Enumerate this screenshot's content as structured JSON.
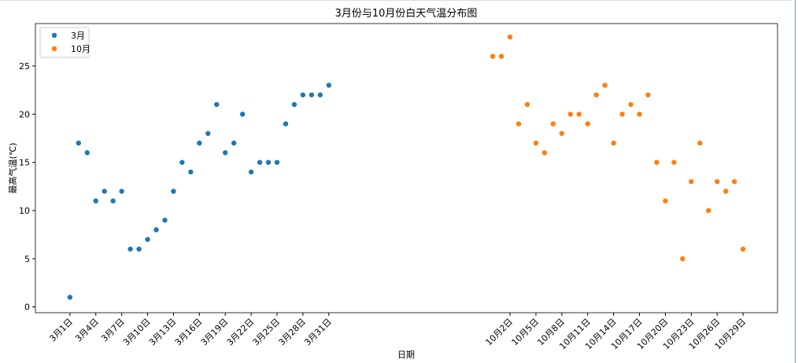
{
  "chart_data": {
    "type": "scatter",
    "title": "3月份与10月份白天气温分布图",
    "x_label": "日期",
    "y_label": "最高气温(℃)",
    "legend": "upper left",
    "series": [
      {
        "name": "3月",
        "color": "#1f77b4",
        "x": [
          0,
          1,
          2,
          3,
          4,
          5,
          6,
          7,
          8,
          9,
          10,
          11,
          12,
          13,
          14,
          15,
          16,
          17,
          18,
          19,
          20,
          21,
          22,
          23,
          24,
          25,
          26,
          27,
          28,
          29,
          30
        ],
        "values": [
          1,
          17,
          16,
          11,
          12,
          11,
          12,
          6,
          6,
          7,
          8,
          9,
          12,
          15,
          14,
          17,
          18,
          21,
          16,
          17,
          20,
          14,
          15,
          15,
          15,
          19,
          21,
          22,
          22,
          22,
          23
        ]
      },
      {
        "name": "10月",
        "color": "#ff7f0e",
        "x": [
          49,
          50,
          51,
          52,
          53,
          54,
          55,
          56,
          57,
          58,
          59,
          60,
          61,
          62,
          63,
          64,
          65,
          66,
          67,
          68,
          69,
          70,
          71,
          72,
          73,
          74,
          75,
          76,
          77,
          78
        ],
        "values": [
          26,
          26,
          28,
          19,
          21,
          17,
          16,
          19,
          18,
          20,
          20,
          19,
          22,
          23,
          17,
          20,
          21,
          20,
          22,
          15,
          11,
          15,
          5,
          13,
          17,
          10,
          13,
          12,
          13,
          6
        ]
      }
    ],
    "xlim": [
      -4,
      82
    ],
    "xticks": [
      {
        "value": 0,
        "label": "3月1日"
      },
      {
        "value": 3,
        "label": "3月4日"
      },
      {
        "value": 6,
        "label": "3月7日"
      },
      {
        "value": 9,
        "label": "3月10日"
      },
      {
        "value": 12,
        "label": "3月13日"
      },
      {
        "value": 15,
        "label": "3月16日"
      },
      {
        "value": 18,
        "label": "3月19日"
      },
      {
        "value": 21,
        "label": "3月22日"
      },
      {
        "value": 24,
        "label": "3月25日"
      },
      {
        "value": 27,
        "label": "3月28日"
      },
      {
        "value": 30,
        "label": "3月31日"
      },
      {
        "value": 51,
        "label": "10月2日"
      },
      {
        "value": 54,
        "label": "10月5日"
      },
      {
        "value": 57,
        "label": "10月8日"
      },
      {
        "value": 60,
        "label": "10月11日"
      },
      {
        "value": 63,
        "label": "10月14日"
      },
      {
        "value": 66,
        "label": "10月17日"
      },
      {
        "value": 69,
        "label": "10月20日"
      },
      {
        "value": 72,
        "label": "10月23日"
      },
      {
        "value": 75,
        "label": "10月26日"
      },
      {
        "value": 78,
        "label": "10月29日"
      }
    ],
    "ylim": [
      -0.6,
      29.4
    ],
    "yticks": [
      0,
      5,
      10,
      15,
      20,
      25
    ]
  }
}
